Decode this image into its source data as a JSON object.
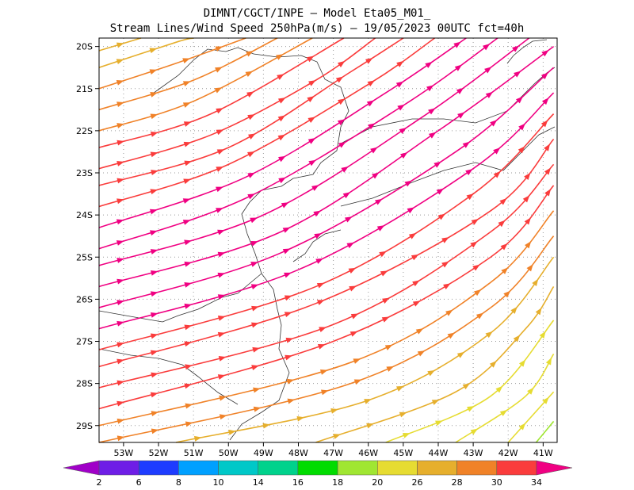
{
  "title_line1": "DIMNT/CGCT/INPE –  Model Eta05_M01_",
  "title_line2": "Stream Lines/Wind Speed 250hPa(m/s) –  19/05/2023 00UTC fct=40h",
  "chart_data": {
    "type": "streamline",
    "title": "DIMNT/CGCT/INPE –  Model Eta05_M01_",
    "subtitle": "Stream Lines/Wind Speed 250hPa(m/s) –  19/05/2023 00UTC fct=40h",
    "xlabel": "",
    "ylabel": "",
    "xlim": [
      -53.7,
      -40.6
    ],
    "ylim": [
      -29.4,
      -19.8
    ],
    "x_ticks": [
      "53W",
      "52W",
      "51W",
      "50W",
      "49W",
      "48W",
      "47W",
      "46W",
      "45W",
      "44W",
      "43W",
      "42W",
      "41W"
    ],
    "y_ticks": [
      "20S",
      "21S",
      "22S",
      "23S",
      "24S",
      "25S",
      "26S",
      "27S",
      "28S",
      "29S"
    ],
    "grid": true,
    "flow": "wind from west-southwest curving to northeast, strongest core 30-34 m/s over 24S-28S",
    "speed_bins": [
      2,
      6,
      8,
      10,
      14,
      16,
      18,
      20,
      26,
      28,
      30,
      34
    ],
    "colorbar_colors": [
      "#a000c8",
      "#6e1ee6",
      "#1e3cff",
      "#00a0ff",
      "#00c8c8",
      "#00d28c",
      "#00dc00",
      "#a0e632",
      "#e6dc32",
      "#e6af2d",
      "#f08228",
      "#fa3c3c",
      "#f00082"
    ],
    "colorbar_labels": [
      "2",
      "6",
      "8",
      "10",
      "14",
      "16",
      "18",
      "20",
      "26",
      "28",
      "30",
      "34"
    ],
    "series": [
      {
        "values": [
          [
            -53.7,
            -20.1
          ],
          [
            -52.5,
            -19.8
          ]
        ],
        "speed": 26
      },
      {
        "values": [
          [
            -53.7,
            -20.5
          ],
          [
            -51.5,
            -19.9
          ],
          [
            -51.0,
            -19.8
          ]
        ],
        "speed": 27
      },
      {
        "values": [
          [
            -53.7,
            -21.0
          ],
          [
            -51.5,
            -20.4
          ],
          [
            -49.5,
            -19.8
          ]
        ],
        "speed": 28
      },
      {
        "values": [
          [
            -53.7,
            -21.5
          ],
          [
            -51.0,
            -20.8
          ],
          [
            -48.6,
            -19.8
          ]
        ],
        "speed": 29
      },
      {
        "values": [
          [
            -53.7,
            -22.0
          ],
          [
            -51.0,
            -21.3
          ],
          [
            -47.6,
            -19.8
          ]
        ],
        "speed": 29
      },
      {
        "values": [
          [
            -53.7,
            -22.4
          ],
          [
            -50.5,
            -21.6
          ],
          [
            -46.7,
            -19.8
          ]
        ],
        "speed": 30
      },
      {
        "values": [
          [
            -53.7,
            -22.9
          ],
          [
            -50.5,
            -22.1
          ],
          [
            -47.5,
            -20.8
          ],
          [
            -45.8,
            -19.8
          ]
        ],
        "speed": 31
      },
      {
        "values": [
          [
            -53.7,
            -23.3
          ],
          [
            -50.0,
            -22.4
          ],
          [
            -46.5,
            -20.6
          ],
          [
            -45.0,
            -19.8
          ]
        ],
        "speed": 32
      },
      {
        "values": [
          [
            -53.7,
            -23.8
          ],
          [
            -50.0,
            -22.8
          ],
          [
            -46.0,
            -20.9
          ],
          [
            -44.1,
            -19.8
          ]
        ],
        "speed": 33
      },
      {
        "values": [
          [
            -53.7,
            -24.3
          ],
          [
            -49.5,
            -23.1
          ],
          [
            -45.5,
            -21.1
          ],
          [
            -43.2,
            -19.8
          ]
        ],
        "speed": 34
      },
      {
        "values": [
          [
            -53.7,
            -24.8
          ],
          [
            -49.5,
            -23.6
          ],
          [
            -45.0,
            -21.4
          ],
          [
            -42.3,
            -19.8
          ]
        ],
        "speed": 34
      },
      {
        "values": [
          [
            -53.7,
            -25.2
          ],
          [
            -49.0,
            -24.0
          ],
          [
            -44.5,
            -21.7
          ],
          [
            -41.4,
            -19.8
          ]
        ],
        "speed": 34
      },
      {
        "values": [
          [
            -53.7,
            -25.7
          ],
          [
            -48.5,
            -24.4
          ],
          [
            -44.0,
            -22.0
          ],
          [
            -40.7,
            -20.0
          ]
        ],
        "speed": 34
      },
      {
        "values": [
          [
            -53.7,
            -26.2
          ],
          [
            -48.5,
            -24.9
          ],
          [
            -43.5,
            -22.5
          ],
          [
            -40.7,
            -20.5
          ]
        ],
        "speed": 34
      },
      {
        "values": [
          [
            -53.7,
            -26.7
          ],
          [
            -48.0,
            -25.3
          ],
          [
            -43.0,
            -22.9
          ],
          [
            -40.7,
            -21.1
          ]
        ],
        "speed": 34
      },
      {
        "values": [
          [
            -53.7,
            -27.2
          ],
          [
            -47.5,
            -25.7
          ],
          [
            -43.0,
            -23.5
          ],
          [
            -40.7,
            -21.6
          ]
        ],
        "speed": 33
      },
      {
        "values": [
          [
            -53.7,
            -27.6
          ],
          [
            -47.5,
            -26.1
          ],
          [
            -42.5,
            -23.9
          ],
          [
            -40.7,
            -22.2
          ]
        ],
        "speed": 32
      },
      {
        "values": [
          [
            -53.7,
            -28.1
          ],
          [
            -47.0,
            -26.6
          ],
          [
            -42.5,
            -24.4
          ],
          [
            -40.7,
            -22.8
          ]
        ],
        "speed": 31
      },
      {
        "values": [
          [
            -53.7,
            -28.6
          ],
          [
            -47.0,
            -27.0
          ],
          [
            -42.5,
            -25.0
          ],
          [
            -40.7,
            -23.3
          ]
        ],
        "speed": 30
      },
      {
        "values": [
          [
            -53.7,
            -29.0
          ],
          [
            -46.5,
            -27.5
          ],
          [
            -42.5,
            -25.6
          ],
          [
            -40.7,
            -23.9
          ]
        ],
        "speed": 29
      },
      {
        "values": [
          [
            -53.7,
            -29.4
          ],
          [
            -46.5,
            -28.0
          ],
          [
            -42.5,
            -26.2
          ],
          [
            -40.7,
            -24.5
          ]
        ],
        "speed": 28
      },
      {
        "values": [
          [
            -51.5,
            -29.4
          ],
          [
            -46.0,
            -28.4
          ],
          [
            -42.5,
            -26.8
          ],
          [
            -40.7,
            -25.0
          ]
        ],
        "speed": 27
      },
      {
        "values": [
          [
            -47.5,
            -29.4
          ],
          [
            -43.5,
            -28.2
          ],
          [
            -41.5,
            -26.7
          ],
          [
            -40.7,
            -25.7
          ]
        ],
        "speed": 26
      },
      {
        "values": [
          [
            -45.5,
            -29.4
          ],
          [
            -42.5,
            -28.3
          ],
          [
            -40.7,
            -26.5
          ]
        ],
        "speed": 24
      },
      {
        "values": [
          [
            -43.5,
            -29.4
          ],
          [
            -41.5,
            -28.3
          ],
          [
            -40.7,
            -27.3
          ]
        ],
        "speed": 22
      },
      {
        "values": [
          [
            -42.0,
            -29.4
          ],
          [
            -40.7,
            -28.2
          ]
        ],
        "speed": 20
      },
      {
        "values": [
          [
            -41.2,
            -29.4
          ],
          [
            -40.7,
            -28.9
          ]
        ],
        "speed": 19
      }
    ]
  }
}
